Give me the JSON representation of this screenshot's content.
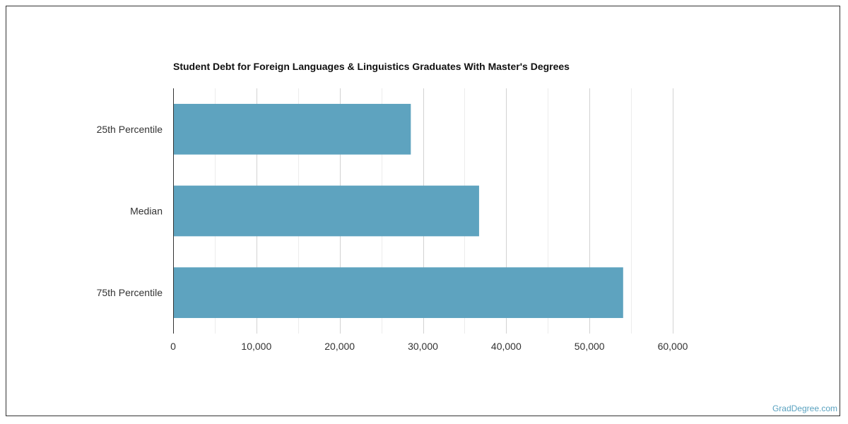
{
  "chart_data": {
    "type": "bar",
    "orientation": "horizontal",
    "title": "Student Debt for Foreign Languages & Linguistics Graduates With Master's Degrees",
    "categories": [
      "25th Percentile",
      "Median",
      "75th Percentile"
    ],
    "values": [
      28500,
      36700,
      54000
    ],
    "xlim": [
      0,
      60000
    ],
    "xticks": [
      "0",
      "10,000",
      "20,000",
      "30,000",
      "40,000",
      "50,000",
      "60,000"
    ],
    "grid": true,
    "bar_color": "#5ea3bf"
  },
  "credit": "GradDegree.com"
}
